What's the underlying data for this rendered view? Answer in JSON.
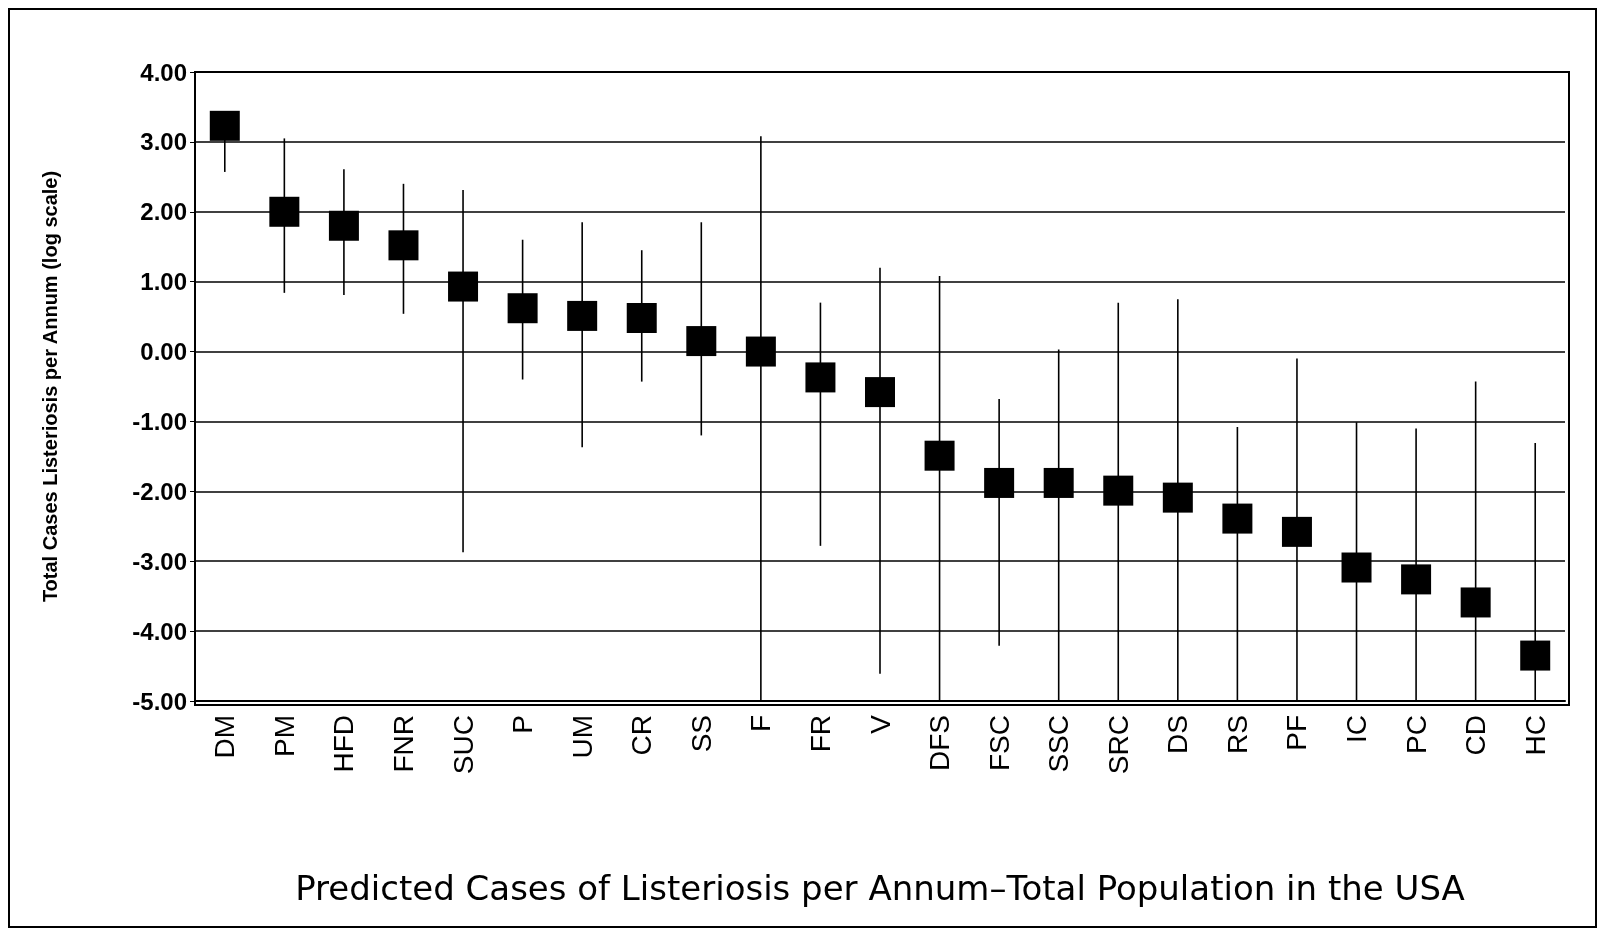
{
  "chart_data": {
    "type": "scatter",
    "xlabel": "Predicted Cases of Listeriosis per Annum–Total Population in the USA",
    "ylabel": "Total Cases Listeriosis per Annum (log scale)",
    "categories": [
      "DM",
      "PM",
      "HFD",
      "FNR",
      "SUC",
      "P",
      "UM",
      "CR",
      "SS",
      "F",
      "FR",
      "V",
      "DFS",
      "FSC",
      "SSC",
      "SRC",
      "DS",
      "RS",
      "PF",
      "IC",
      "PC",
      "CD",
      "HC"
    ],
    "values": [
      3.23,
      2.0,
      1.8,
      1.52,
      0.93,
      0.62,
      0.51,
      0.48,
      0.15,
      0.0,
      -0.37,
      -0.58,
      -1.49,
      -1.88,
      -1.88,
      -1.99,
      -2.09,
      -2.39,
      -2.58,
      -3.09,
      -3.26,
      -3.59,
      -4.35
    ],
    "errors": [
      [
        2.57,
        3.23
      ],
      [
        0.84,
        3.05
      ],
      [
        0.81,
        2.61
      ],
      [
        0.54,
        2.4
      ],
      [
        -2.87,
        2.31
      ],
      [
        -0.4,
        1.6
      ],
      [
        -1.37,
        1.85
      ],
      [
        -0.43,
        1.45
      ],
      [
        -1.2,
        1.85
      ],
      [
        -5.0,
        3.08
      ],
      [
        -2.78,
        0.7
      ],
      [
        -4.61,
        1.2
      ],
      [
        -5.0,
        1.08
      ],
      [
        -4.21,
        -0.68
      ],
      [
        -5.0,
        0.03
      ],
      [
        -5.0,
        0.7
      ],
      [
        -5.0,
        0.75
      ],
      [
        -5.0,
        -1.08
      ],
      [
        -5.0,
        -0.1
      ],
      [
        -5.0,
        -1.01
      ],
      [
        -5.0,
        -1.1
      ],
      [
        -5.0,
        -0.43
      ],
      [
        -5.0,
        -1.31
      ]
    ],
    "color": "#000000",
    "marker": "square",
    "grid": "y",
    "ylim": [
      -5,
      4
    ],
    "yticks": [
      {
        "value": -5,
        "label": "-5.00"
      },
      {
        "value": -4,
        "label": "-4.00"
      },
      {
        "value": -3,
        "label": "-3.00"
      },
      {
        "value": -2,
        "label": "-2.00"
      },
      {
        "value": -1,
        "label": "-1.00"
      },
      {
        "value": 0,
        "label": "0.00"
      },
      {
        "value": 1,
        "label": "1.00"
      },
      {
        "value": 2,
        "label": "2.00"
      },
      {
        "value": 3,
        "label": "3.00"
      },
      {
        "value": 4,
        "label": "4.00"
      }
    ]
  }
}
